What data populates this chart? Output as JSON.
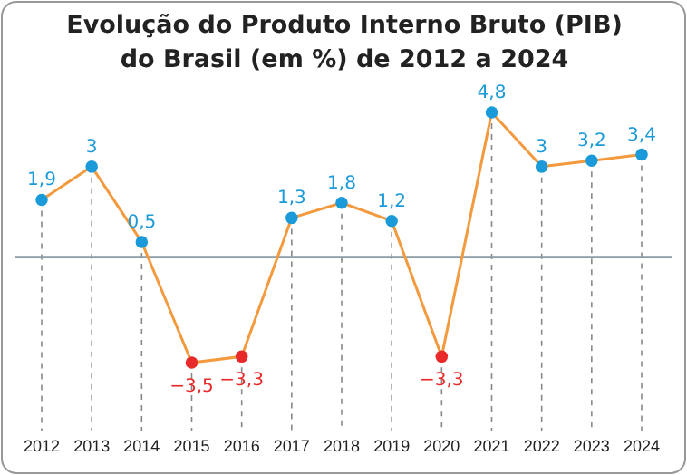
{
  "chart_data": {
    "type": "line",
    "title": "Evolução do Produto Interno Bruto (PIB)\ndo Brasil (em %) de 2012 a 2024",
    "categories": [
      "2012",
      "2013",
      "2014",
      "2015",
      "2016",
      "2017",
      "2018",
      "2019",
      "2020",
      "2021",
      "2022",
      "2023",
      "2024"
    ],
    "series": [
      {
        "color": "#f39a3e",
        "values": [
          1.9,
          3,
          0.5,
          -3.5,
          -3.3,
          1.3,
          1.8,
          1.2,
          -3.3,
          4.8,
          3,
          3.2,
          3.4
        ],
        "colors": [
          "#1a9ad9",
          "#1a9ad9",
          "#1a9ad9",
          "#e82a2a",
          "#e82a2a",
          "#1a9ad9",
          "#1a9ad9",
          "#1a9ad9",
          "#e82a2a",
          "#1a9ad9",
          "#1a9ad9",
          "#1a9ad9",
          "#1a9ad9"
        ],
        "value_labels": [
          "1,9",
          "3",
          "0,5",
          "−3,5",
          "−3,3",
          "1,3",
          "1,8",
          "1,2",
          "−3,3",
          "4,8",
          "3",
          "3,2",
          "3,4"
        ]
      }
    ],
    "ref_lines": [
      {
        "axis": "y",
        "value": 0,
        "color": "#8a9ca4"
      }
    ],
    "grid": "x",
    "marker": "circle",
    "line_style": "solid"
  }
}
